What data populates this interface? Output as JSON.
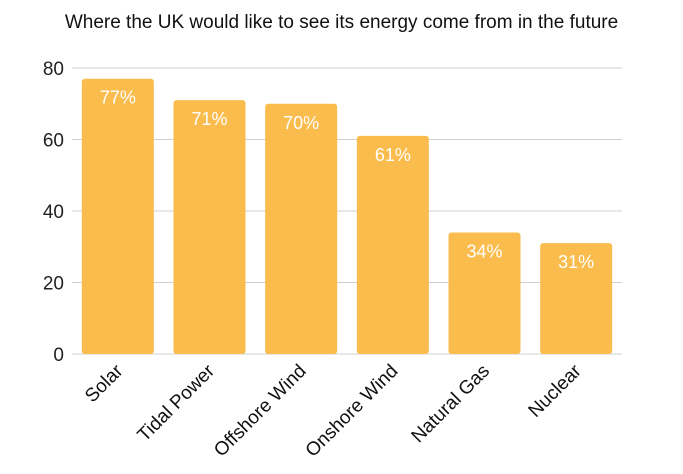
{
  "chart_data": {
    "type": "bar",
    "title": "Where the UK would like to see its energy come from in the future",
    "xlabel": "",
    "ylabel": "",
    "categories": [
      "Solar",
      "Tidal Power",
      "Offshore Wind",
      "Onshore Wind",
      "Natural Gas",
      "Nuclear"
    ],
    "values": [
      77,
      71,
      70,
      61,
      34,
      31
    ],
    "data_labels": [
      "77%",
      "71%",
      "70%",
      "61%",
      "34%",
      "31%"
    ],
    "ylim": [
      0,
      80
    ],
    "yticks": [
      0,
      20,
      40,
      60,
      80
    ],
    "grid": true,
    "bar_color": "#fbbc4e",
    "grid_color": "#d0d0d0"
  }
}
